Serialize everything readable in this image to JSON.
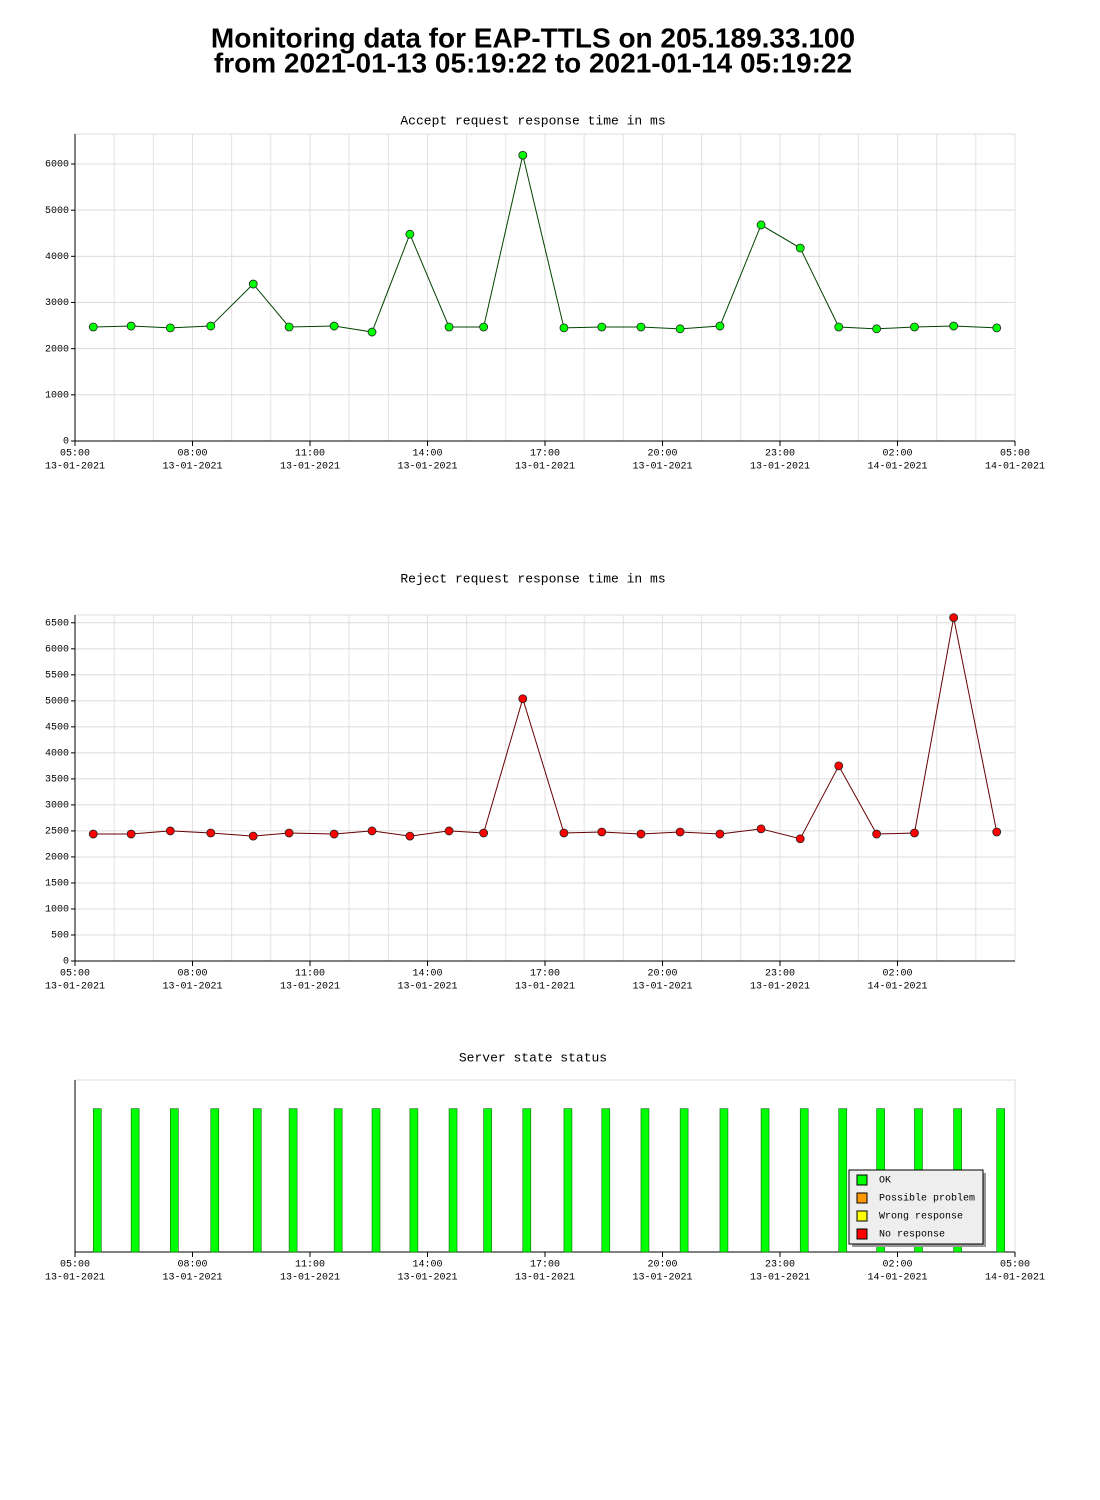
{
  "header": {
    "title": [
      "Monitoring data for EAP-TTLS on 205.189.33.100",
      "from 2021-01-13 05:19:22 to 2021-01-14 05:19:22"
    ]
  },
  "chart_data": [
    {
      "type": "line",
      "title": "Accept request response time in ms",
      "title_color": "#004400",
      "x": [
        "2021-01-13 05:28",
        "2021-01-13 06:26",
        "2021-01-13 07:26",
        "2021-01-13 08:28",
        "2021-01-13 09:33",
        "2021-01-13 10:28",
        "2021-01-13 11:37",
        "2021-01-13 12:35",
        "2021-01-13 13:33",
        "2021-01-13 14:33",
        "2021-01-13 15:26",
        "2021-01-13 16:26",
        "2021-01-13 17:29",
        "2021-01-13 18:27",
        "2021-01-13 19:27",
        "2021-01-13 20:27",
        "2021-01-13 21:28",
        "2021-01-13 22:31",
        "2021-01-13 23:31",
        "2021-01-14 00:30",
        "2021-01-14 01:28",
        "2021-01-14 02:26",
        "2021-01-14 03:26",
        "2021-01-14 04:32"
      ],
      "series": [
        {
          "color": "#00ff00",
          "line_color": "#004400",
          "values": [
            2470,
            2490,
            2450,
            2490,
            3400,
            2470,
            2490,
            2360,
            4480,
            2470,
            2470,
            6190,
            2450,
            2470,
            2470,
            2430,
            2490,
            4680,
            4180,
            2470,
            2430,
            2470,
            2490,
            2450
          ]
        }
      ],
      "xlim": [
        "2021-01-13 05:00",
        "2021-01-14 05:00"
      ],
      "xticks": [
        {
          "value": "2021-01-13 05:00",
          "label": [
            "05:00",
            "13-01-2021"
          ]
        },
        {
          "value": "2021-01-13 08:00",
          "label": [
            "08:00",
            "13-01-2021"
          ]
        },
        {
          "value": "2021-01-13 11:00",
          "label": [
            "11:00",
            "13-01-2021"
          ]
        },
        {
          "value": "2021-01-13 14:00",
          "label": [
            "14:00",
            "13-01-2021"
          ]
        },
        {
          "value": "2021-01-13 17:00",
          "label": [
            "17:00",
            "13-01-2021"
          ]
        },
        {
          "value": "2021-01-13 20:00",
          "label": [
            "20:00",
            "13-01-2021"
          ]
        },
        {
          "value": "2021-01-13 23:00",
          "label": [
            "23:00",
            "13-01-2021"
          ]
        },
        {
          "value": "2021-01-14 02:00",
          "label": [
            "02:00",
            "14-01-2021"
          ]
        },
        {
          "value": "2021-01-14 05:00",
          "label": [
            "05:00",
            "14-01-2021"
          ]
        }
      ],
      "ylim": [
        0,
        6650
      ],
      "yticks": [
        0,
        1000,
        2000,
        3000,
        4000,
        5000,
        6000
      ],
      "grid": true
    },
    {
      "type": "line",
      "title": "Reject request response time in ms",
      "title_color": "#660000",
      "x": [
        "2021-01-13 05:28",
        "2021-01-13 06:26",
        "2021-01-13 07:26",
        "2021-01-13 08:28",
        "2021-01-13 09:33",
        "2021-01-13 10:28",
        "2021-01-13 11:37",
        "2021-01-13 12:35",
        "2021-01-13 13:33",
        "2021-01-13 14:33",
        "2021-01-13 15:26",
        "2021-01-13 16:26",
        "2021-01-13 17:29",
        "2021-01-13 18:27",
        "2021-01-13 19:27",
        "2021-01-13 20:27",
        "2021-01-13 21:28",
        "2021-01-13 22:31",
        "2021-01-13 23:31",
        "2021-01-14 00:30",
        "2021-01-14 01:28",
        "2021-01-14 02:26",
        "2021-01-14 03:26",
        "2021-01-14 04:32"
      ],
      "series": [
        {
          "color": "#ff0000",
          "line_color": "#660000",
          "values": [
            2440,
            2440,
            2500,
            2460,
            2400,
            2460,
            2440,
            2500,
            2400,
            2500,
            2460,
            5040,
            2460,
            2480,
            2440,
            2480,
            2440,
            2540,
            2350,
            3750,
            2440,
            2460,
            6600,
            2480
          ]
        }
      ],
      "xlim": [
        "2021-01-13 05:00",
        "2021-01-14 05:00"
      ],
      "xticks": [
        {
          "value": "2021-01-13 05:00",
          "label": [
            "05:00",
            "13-01-2021"
          ]
        },
        {
          "value": "2021-01-13 08:00",
          "label": [
            "08:00",
            "13-01-2021"
          ]
        },
        {
          "value": "2021-01-13 11:00",
          "label": [
            "11:00",
            "13-01-2021"
          ]
        },
        {
          "value": "2021-01-13 14:00",
          "label": [
            "14:00",
            "13-01-2021"
          ]
        },
        {
          "value": "2021-01-13 17:00",
          "label": [
            "17:00",
            "13-01-2021"
          ]
        },
        {
          "value": "2021-01-13 20:00",
          "label": [
            "20:00",
            "13-01-2021"
          ]
        },
        {
          "value": "2021-01-13 23:00",
          "label": [
            "23:00",
            "13-01-2021"
          ]
        },
        {
          "value": "2021-01-14 02:00",
          "label": [
            "02:00",
            "14-01-2021"
          ]
        }
      ],
      "ylim": [
        0,
        6650
      ],
      "yticks": [
        0,
        500,
        1000,
        1500,
        2000,
        2500,
        3000,
        3500,
        4000,
        4500,
        5000,
        5500,
        6000,
        6500
      ],
      "grid": true
    },
    {
      "type": "bar",
      "title": "Server state status",
      "title_color": "#660000",
      "x": [
        "2021-01-13 05:28",
        "2021-01-13 06:26",
        "2021-01-13 07:26",
        "2021-01-13 08:28",
        "2021-01-13 09:33",
        "2021-01-13 10:28",
        "2021-01-13 11:37",
        "2021-01-13 12:35",
        "2021-01-13 13:33",
        "2021-01-13 14:33",
        "2021-01-13 15:26",
        "2021-01-13 16:26",
        "2021-01-13 17:29",
        "2021-01-13 18:27",
        "2021-01-13 19:27",
        "2021-01-13 20:27",
        "2021-01-13 21:28",
        "2021-01-13 22:31",
        "2021-01-13 23:31",
        "2021-01-14 00:30",
        "2021-01-14 01:28",
        "2021-01-14 02:26",
        "2021-01-14 03:26",
        "2021-01-14 04:32"
      ],
      "series": [
        {
          "name": "OK",
          "color": "#00ff00",
          "values": [
            1,
            1,
            1,
            1,
            1,
            1,
            1,
            1,
            1,
            1,
            1,
            1,
            1,
            1,
            1,
            1,
            1,
            1,
            1,
            1,
            1,
            1,
            1,
            1
          ]
        },
        {
          "name": "Possible problem",
          "color": "#ff9900",
          "values": [
            null,
            null,
            null,
            null,
            null,
            null,
            null,
            null,
            null,
            null,
            null,
            null,
            null,
            null,
            null,
            null,
            null,
            null,
            null,
            null,
            null,
            null,
            null,
            null
          ]
        },
        {
          "name": "Wrong response",
          "color": "#ffff00",
          "values": [
            null,
            null,
            null,
            null,
            null,
            null,
            null,
            null,
            null,
            null,
            null,
            null,
            null,
            null,
            null,
            null,
            null,
            null,
            null,
            null,
            null,
            null,
            null,
            null
          ]
        },
        {
          "name": "No response",
          "color": "#ff0000",
          "values": [
            null,
            null,
            null,
            null,
            null,
            null,
            null,
            null,
            null,
            null,
            null,
            null,
            null,
            null,
            null,
            null,
            null,
            null,
            null,
            null,
            null,
            null,
            null,
            null
          ]
        }
      ],
      "xlim": [
        "2021-01-13 05:00",
        "2021-01-14 05:00"
      ],
      "xticks": [
        {
          "value": "2021-01-13 05:00",
          "label": [
            "05:00",
            "13-01-2021"
          ]
        },
        {
          "value": "2021-01-13 08:00",
          "label": [
            "08:00",
            "13-01-2021"
          ]
        },
        {
          "value": "2021-01-13 11:00",
          "label": [
            "11:00",
            "13-01-2021"
          ]
        },
        {
          "value": "2021-01-13 14:00",
          "label": [
            "14:00",
            "13-01-2021"
          ]
        },
        {
          "value": "2021-01-13 17:00",
          "label": [
            "17:00",
            "13-01-2021"
          ]
        },
        {
          "value": "2021-01-13 20:00",
          "label": [
            "20:00",
            "13-01-2021"
          ]
        },
        {
          "value": "2021-01-13 23:00",
          "label": [
            "23:00",
            "13-01-2021"
          ]
        },
        {
          "value": "2021-01-14 02:00",
          "label": [
            "02:00",
            "14-01-2021"
          ]
        },
        {
          "value": "2021-01-14 05:00",
          "label": [
            "05:00",
            "14-01-2021"
          ]
        }
      ],
      "ylim": [
        0,
        1.2
      ],
      "legend": "lower right"
    }
  ]
}
